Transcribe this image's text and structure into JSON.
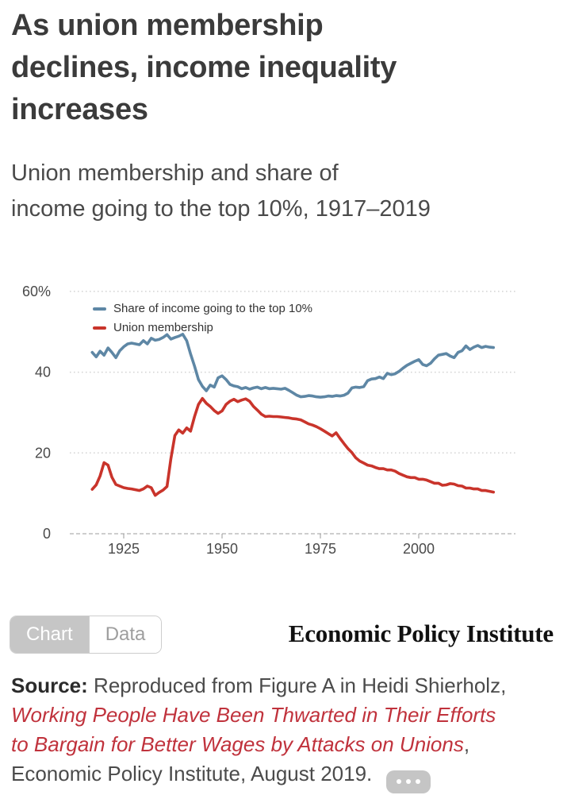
{
  "header": {
    "title_lines": [
      "As union membership",
      "declines, income inequality",
      "increases"
    ],
    "subtitle_lines": [
      "Union membership and share of",
      "income going to the top 10%, 1917–2019"
    ]
  },
  "chart_data": {
    "type": "line",
    "title": "Union membership and share of income going to the top 10%, 1917–2019",
    "legend_position": "top-left-inside",
    "grid": "horizontal dotted",
    "ylim": [
      0,
      60
    ],
    "x": [
      1917,
      1918,
      1919,
      1920,
      1921,
      1922,
      1923,
      1924,
      1925,
      1926,
      1927,
      1928,
      1929,
      1930,
      1931,
      1932,
      1933,
      1934,
      1935,
      1936,
      1937,
      1938,
      1939,
      1940,
      1941,
      1942,
      1943,
      1944,
      1945,
      1946,
      1947,
      1948,
      1949,
      1950,
      1951,
      1952,
      1953,
      1954,
      1955,
      1956,
      1957,
      1958,
      1959,
      1960,
      1961,
      1962,
      1963,
      1964,
      1965,
      1966,
      1967,
      1968,
      1969,
      1970,
      1971,
      1972,
      1973,
      1974,
      1975,
      1976,
      1977,
      1978,
      1979,
      1980,
      1981,
      1982,
      1983,
      1984,
      1985,
      1986,
      1987,
      1988,
      1989,
      1990,
      1991,
      1992,
      1993,
      1994,
      1995,
      1996,
      1997,
      1998,
      1999,
      2000,
      2001,
      2002,
      2003,
      2004,
      2005,
      2006,
      2007,
      2008,
      2009,
      2010,
      2011,
      2012,
      2013,
      2014,
      2015,
      2016,
      2017,
      2018,
      2019
    ],
    "series": [
      {
        "name": "Share of income going to the top 10%",
        "color": "#5e87a5",
        "values": [
          44.9,
          43.8,
          45.2,
          44.2,
          46.0,
          44.9,
          43.6,
          45.3,
          46.3,
          47.0,
          47.2,
          47.0,
          46.8,
          47.8,
          47.0,
          48.4,
          47.9,
          48.1,
          48.6,
          49.3,
          48.2,
          48.6,
          48.9,
          49.4,
          47.8,
          44.5,
          41.5,
          38.2,
          36.5,
          35.4,
          36.8,
          36.3,
          38.6,
          39.1,
          38.2,
          37.0,
          36.6,
          36.4,
          35.9,
          36.2,
          35.8,
          36.1,
          36.3,
          35.9,
          36.2,
          35.9,
          36.0,
          35.9,
          35.8,
          36.0,
          35.5,
          34.9,
          34.3,
          33.9,
          34.0,
          34.2,
          34.1,
          33.9,
          33.8,
          33.9,
          34.1,
          34.0,
          34.2,
          34.1,
          34.3,
          34.8,
          36.1,
          36.3,
          36.2,
          36.4,
          37.9,
          38.3,
          38.4,
          38.8,
          38.4,
          39.7,
          39.4,
          39.6,
          40.2,
          41.0,
          41.7,
          42.2,
          42.7,
          43.1,
          41.9,
          41.6,
          42.2,
          43.3,
          44.2,
          44.4,
          44.6,
          44.0,
          43.6,
          44.9,
          45.3,
          46.5,
          45.6,
          46.2,
          46.6,
          46.1,
          46.4,
          46.2,
          46.1
        ]
      },
      {
        "name": "Union membership",
        "color": "#c9342b",
        "values": [
          11.0,
          12.1,
          14.3,
          17.6,
          17.0,
          14.0,
          12.2,
          11.8,
          11.4,
          11.2,
          11.1,
          10.9,
          10.7,
          11.1,
          11.8,
          11.4,
          9.5,
          10.2,
          10.8,
          11.7,
          18.6,
          24.3,
          25.7,
          24.9,
          26.2,
          25.4,
          29.0,
          32.0,
          33.5,
          32.3,
          31.5,
          30.5,
          29.8,
          30.4,
          32.0,
          32.8,
          33.3,
          32.7,
          33.1,
          33.4,
          32.8,
          31.5,
          30.6,
          29.6,
          29.0,
          29.1,
          29.0,
          29.0,
          28.9,
          28.8,
          28.7,
          28.5,
          28.4,
          28.2,
          27.7,
          27.2,
          26.9,
          26.5,
          26.0,
          25.4,
          24.8,
          24.2,
          25.0,
          23.6,
          22.3,
          21.1,
          20.1,
          18.8,
          18.0,
          17.5,
          17.0,
          16.8,
          16.4,
          16.1,
          16.1,
          15.8,
          15.8,
          15.5,
          14.9,
          14.5,
          14.1,
          13.9,
          13.9,
          13.5,
          13.5,
          13.3,
          12.9,
          12.5,
          12.5,
          12.0,
          12.1,
          12.4,
          12.3,
          11.9,
          11.8,
          11.3,
          11.3,
          11.1,
          11.1,
          10.7,
          10.7,
          10.5,
          10.3
        ]
      }
    ],
    "x_axis": {
      "ticks": [
        {
          "value": 1925,
          "label": "1925"
        },
        {
          "value": 1950,
          "label": "1950"
        },
        {
          "value": 1975,
          "label": "1975"
        },
        {
          "value": 2000,
          "label": "2000"
        }
      ]
    },
    "y_axis": {
      "ticks": [
        {
          "value": 60,
          "label": "60%"
        },
        {
          "value": 40,
          "label": "40"
        },
        {
          "value": 20,
          "label": "20"
        },
        {
          "value": 0,
          "label": "0"
        }
      ]
    }
  },
  "controls": {
    "chart_tab": "Chart",
    "data_tab": "Data"
  },
  "branding": {
    "logo_text": "Economic Policy Institute"
  },
  "source": {
    "label": "Source:",
    "line1_rest": " Reproduced from Figure A in Heidi Shierholz,",
    "link_line1": "Working People Have Been Thwarted in Their Efforts",
    "link_line2": "to Bargain for Better Wages by Attacks on Unions",
    "after_link_comma": ",",
    "line4": "Economic Policy Institute, August 2019."
  }
}
